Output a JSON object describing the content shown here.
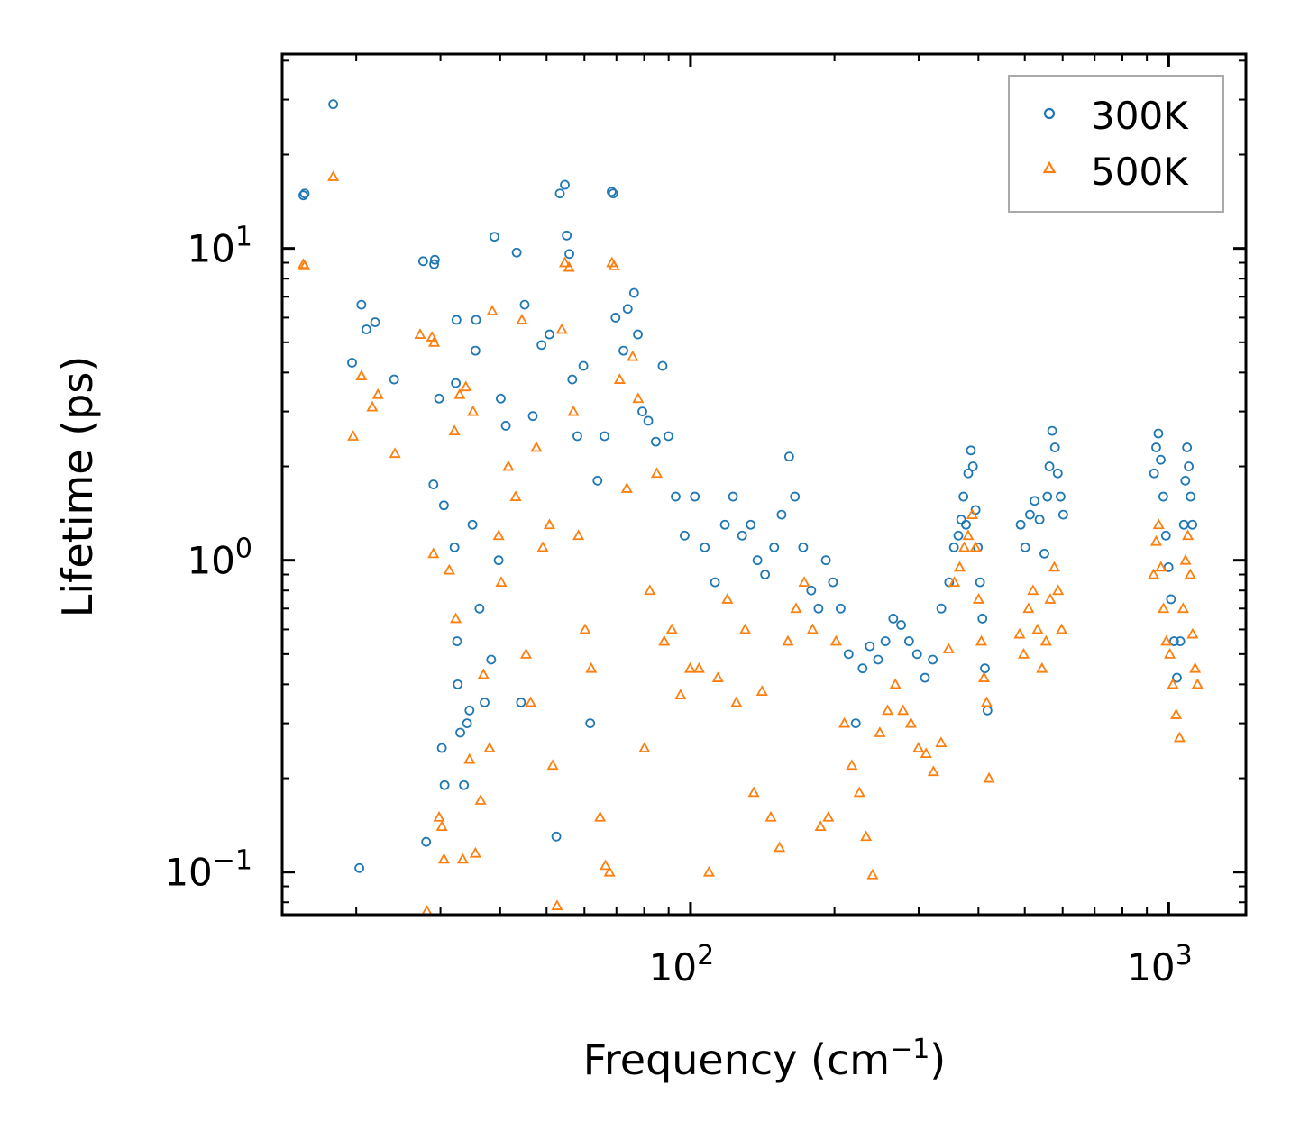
{
  "chart_data": {
    "type": "scatter",
    "xscale": "log",
    "yscale": "log",
    "xlim": [
      14,
      1450
    ],
    "ylim": [
      0.073,
      42
    ],
    "xlabel": "Frequency (cm",
    "xlabel_sup": "−1",
    "xlabel_end": ")",
    "ylabel": "Lifetime (ps)",
    "xticks": [
      {
        "value": 100,
        "base": "10",
        "exp": "2"
      },
      {
        "value": 1000,
        "base": "10",
        "exp": "3"
      }
    ],
    "yticks": [
      {
        "value": 0.1,
        "base": "10",
        "exp": "−1"
      },
      {
        "value": 1,
        "base": "10",
        "exp": "0"
      },
      {
        "value": 10,
        "base": "10",
        "exp": "1"
      }
    ],
    "legend": {
      "position": "top-right"
    },
    "series": [
      {
        "name": "300K",
        "marker": "circle",
        "color": "#1f77b4",
        "points": [
          [
            15.5,
            14.8
          ],
          [
            15.6,
            15.0
          ],
          [
            17.9,
            29.0
          ],
          [
            19.6,
            4.3
          ],
          [
            20.3,
            0.103
          ],
          [
            20.5,
            6.6
          ],
          [
            21.0,
            5.5
          ],
          [
            21.9,
            5.8
          ],
          [
            24.0,
            3.8
          ],
          [
            27.6,
            9.1
          ],
          [
            28.0,
            0.125
          ],
          [
            29.1,
            8.9
          ],
          [
            29.2,
            9.2
          ],
          [
            29.0,
            1.75
          ],
          [
            29.8,
            3.3
          ],
          [
            30.2,
            0.25
          ],
          [
            30.5,
            1.5
          ],
          [
            30.6,
            0.19
          ],
          [
            32.1,
            1.1
          ],
          [
            32.4,
            5.9
          ],
          [
            32.3,
            3.7
          ],
          [
            32.5,
            0.55
          ],
          [
            32.6,
            0.4
          ],
          [
            33.0,
            0.28
          ],
          [
            33.6,
            0.19
          ],
          [
            34.1,
            0.3
          ],
          [
            34.5,
            0.33
          ],
          [
            35.0,
            1.3
          ],
          [
            35.5,
            4.7
          ],
          [
            35.6,
            5.9
          ],
          [
            36.2,
            0.7
          ],
          [
            37.1,
            0.35
          ],
          [
            38.3,
            0.48
          ],
          [
            38.9,
            10.9
          ],
          [
            39.7,
            1.0
          ],
          [
            40.1,
            3.3
          ],
          [
            41.1,
            2.7
          ],
          [
            43.3,
            9.7
          ],
          [
            44.2,
            0.35
          ],
          [
            45.0,
            6.6
          ],
          [
            46.8,
            2.9
          ],
          [
            48.8,
            4.9
          ],
          [
            50.7,
            5.3
          ],
          [
            52.4,
            0.13
          ],
          [
            53.3,
            15.0
          ],
          [
            54.6,
            16.0
          ],
          [
            55.1,
            11.0
          ],
          [
            55.8,
            9.6
          ],
          [
            56.6,
            3.8
          ],
          [
            58.0,
            2.5
          ],
          [
            59.7,
            4.2
          ],
          [
            61.7,
            0.3
          ],
          [
            63.9,
            1.8
          ],
          [
            66.1,
            2.5
          ],
          [
            68.4,
            15.2
          ],
          [
            68.9,
            15.0
          ],
          [
            69.7,
            6.0
          ],
          [
            72.4,
            4.7
          ],
          [
            73.9,
            6.4
          ],
          [
            76.2,
            7.2
          ],
          [
            77.6,
            5.3
          ],
          [
            79.3,
            3.0
          ],
          [
            81.6,
            2.8
          ],
          [
            84.6,
            2.4
          ],
          [
            87.4,
            4.2
          ],
          [
            89.9,
            2.5
          ],
          [
            93.1,
            1.6
          ],
          [
            97.2,
            1.2
          ],
          [
            102.1,
            1.6
          ],
          [
            107.1,
            1.1
          ],
          [
            112.5,
            0.85
          ],
          [
            118.0,
            1.3
          ],
          [
            122.7,
            1.6
          ],
          [
            128.2,
            1.2
          ],
          [
            133.6,
            1.3
          ],
          [
            138.0,
            1.0
          ],
          [
            143.2,
            0.9
          ],
          [
            149.6,
            1.1
          ],
          [
            155.0,
            1.4
          ],
          [
            160.8,
            2.15
          ],
          [
            165.3,
            1.6
          ],
          [
            172.0,
            1.1
          ],
          [
            178.8,
            0.8
          ],
          [
            185.2,
            0.7
          ],
          [
            191.9,
            1.0
          ],
          [
            198.5,
            0.85
          ],
          [
            206.0,
            0.7
          ],
          [
            214.1,
            0.5
          ],
          [
            221.6,
            0.3
          ],
          [
            229.0,
            0.45
          ],
          [
            237.1,
            0.53
          ],
          [
            246.7,
            0.48
          ],
          [
            255.6,
            0.55
          ],
          [
            265.4,
            0.65
          ],
          [
            275.7,
            0.62
          ],
          [
            286.4,
            0.55
          ],
          [
            297.7,
            0.5
          ],
          [
            309.2,
            0.42
          ],
          [
            321.0,
            0.48
          ],
          [
            334.5,
            0.7
          ],
          [
            347.4,
            0.85
          ],
          [
            355.5,
            1.1
          ],
          [
            363.1,
            1.2
          ],
          [
            368.0,
            1.35
          ],
          [
            372.1,
            1.6
          ],
          [
            376.7,
            1.3
          ],
          [
            380.8,
            1.9
          ],
          [
            385.7,
            2.25
          ],
          [
            389.5,
            2.0
          ],
          [
            394.5,
            1.45
          ],
          [
            398.8,
            1.1
          ],
          [
            403.2,
            0.85
          ],
          [
            407.7,
            0.65
          ],
          [
            412.7,
            0.45
          ],
          [
            417.7,
            0.33
          ],
          [
            490.1,
            1.3
          ],
          [
            501.0,
            1.1
          ],
          [
            512.6,
            1.4
          ],
          [
            524.1,
            1.55
          ],
          [
            536.9,
            1.35
          ],
          [
            549.5,
            1.05
          ],
          [
            557.4,
            1.6
          ],
          [
            563.0,
            2.0
          ],
          [
            570.5,
            2.6
          ],
          [
            578.2,
            2.3
          ],
          [
            586.0,
            1.9
          ],
          [
            594.1,
            1.6
          ],
          [
            601.7,
            1.4
          ],
          [
            932.0,
            1.9
          ],
          [
            941.3,
            2.3
          ],
          [
            951.4,
            2.55
          ],
          [
            962.3,
            2.1
          ],
          [
            974.2,
            1.6
          ],
          [
            986.5,
            1.2
          ],
          [
            999.0,
            0.95
          ],
          [
            1010.9,
            0.75
          ],
          [
            1026.0,
            0.55
          ],
          [
            1040.2,
            0.42
          ],
          [
            1056.9,
            0.55
          ],
          [
            1075.5,
            1.3
          ],
          [
            1083.2,
            1.8
          ],
          [
            1091.9,
            2.3
          ],
          [
            1101.0,
            2.0
          ],
          [
            1110.9,
            1.6
          ],
          [
            1120.5,
            1.3
          ]
        ]
      },
      {
        "name": "500K",
        "marker": "triangle",
        "color": "#ff7f0e",
        "points": [
          [
            15.5,
            8.9
          ],
          [
            15.6,
            8.8
          ],
          [
            17.9,
            17.0
          ],
          [
            19.7,
            2.5
          ],
          [
            20.5,
            3.9
          ],
          [
            21.6,
            3.1
          ],
          [
            22.2,
            3.4
          ],
          [
            24.1,
            2.2
          ],
          [
            27.2,
            5.3
          ],
          [
            28.1,
            0.075
          ],
          [
            28.8,
            5.2
          ],
          [
            29.0,
            1.05
          ],
          [
            29.1,
            5.0
          ],
          [
            29.8,
            0.15
          ],
          [
            30.2,
            0.14
          ],
          [
            30.5,
            0.11
          ],
          [
            31.3,
            0.93
          ],
          [
            32.1,
            2.6
          ],
          [
            32.3,
            0.65
          ],
          [
            32.9,
            3.4
          ],
          [
            33.4,
            0.11
          ],
          [
            33.9,
            3.6
          ],
          [
            34.5,
            0.23
          ],
          [
            35.1,
            3.0
          ],
          [
            35.5,
            0.115
          ],
          [
            36.4,
            0.17
          ],
          [
            36.9,
            0.43
          ],
          [
            38.0,
            0.25
          ],
          [
            38.5,
            6.3
          ],
          [
            39.7,
            1.2
          ],
          [
            40.2,
            0.85
          ],
          [
            41.6,
            2.0
          ],
          [
            43.1,
            1.6
          ],
          [
            44.4,
            5.9
          ],
          [
            45.3,
            0.5
          ],
          [
            46.3,
            0.35
          ],
          [
            47.6,
            2.3
          ],
          [
            49.1,
            1.1
          ],
          [
            50.7,
            1.3
          ],
          [
            51.5,
            0.22
          ],
          [
            52.6,
            0.078
          ],
          [
            53.8,
            5.5
          ],
          [
            54.6,
            9.0
          ],
          [
            55.7,
            8.7
          ],
          [
            56.9,
            3.0
          ],
          [
            58.3,
            1.2
          ],
          [
            60.2,
            0.6
          ],
          [
            62.0,
            0.45
          ],
          [
            64.7,
            0.15
          ],
          [
            66.4,
            0.105
          ],
          [
            67.7,
            0.1
          ],
          [
            68.5,
            9.0
          ],
          [
            69.2,
            8.8
          ],
          [
            71.1,
            3.8
          ],
          [
            73.6,
            1.7
          ],
          [
            75.7,
            4.5
          ],
          [
            77.7,
            3.3
          ],
          [
            80.1,
            0.25
          ],
          [
            82.2,
            0.8
          ],
          [
            85.0,
            1.9
          ],
          [
            88.1,
            0.55
          ],
          [
            91.4,
            0.6
          ],
          [
            95.3,
            0.37
          ],
          [
            99.8,
            0.45
          ],
          [
            104.2,
            0.45
          ],
          [
            109.3,
            0.1
          ],
          [
            114.1,
            0.42
          ],
          [
            119.4,
            0.75
          ],
          [
            124.7,
            0.35
          ],
          [
            130.1,
            0.6
          ],
          [
            135.6,
            0.18
          ],
          [
            141.1,
            0.38
          ],
          [
            147.2,
            0.15
          ],
          [
            153.5,
            0.12
          ],
          [
            159.8,
            0.55
          ],
          [
            166.2,
            0.7
          ],
          [
            172.9,
            0.85
          ],
          [
            180.0,
            0.6
          ],
          [
            187.0,
            0.14
          ],
          [
            194.2,
            0.15
          ],
          [
            201.5,
            0.55
          ],
          [
            209.7,
            0.3
          ],
          [
            217.4,
            0.22
          ],
          [
            225.5,
            0.18
          ],
          [
            232.8,
            0.13
          ],
          [
            240.3,
            0.098
          ],
          [
            248.8,
            0.28
          ],
          [
            258.3,
            0.33
          ],
          [
            268.1,
            0.4
          ],
          [
            278.2,
            0.33
          ],
          [
            289.0,
            0.3
          ],
          [
            299.5,
            0.25
          ],
          [
            310.8,
            0.24
          ],
          [
            322.1,
            0.21
          ],
          [
            334.2,
            0.26
          ],
          [
            346.5,
            0.52
          ],
          [
            356.1,
            0.85
          ],
          [
            365.4,
            0.95
          ],
          [
            373.6,
            1.1
          ],
          [
            380.7,
            1.2
          ],
          [
            388.2,
            1.4
          ],
          [
            394.5,
            1.1
          ],
          [
            400.3,
            0.75
          ],
          [
            405.6,
            0.55
          ],
          [
            410.9,
            0.42
          ],
          [
            416.1,
            0.35
          ],
          [
            421.0,
            0.2
          ],
          [
            487.7,
            0.58
          ],
          [
            497.3,
            0.5
          ],
          [
            509.1,
            0.7
          ],
          [
            520.2,
            0.8
          ],
          [
            531.8,
            0.6
          ],
          [
            543.2,
            0.45
          ],
          [
            553.9,
            0.55
          ],
          [
            565.2,
            0.75
          ],
          [
            576.4,
            0.95
          ],
          [
            587.0,
            0.8
          ],
          [
            597.1,
            0.6
          ],
          [
            929.7,
            0.9
          ],
          [
            941.3,
            1.15
          ],
          [
            952.9,
            1.3
          ],
          [
            963.2,
            0.95
          ],
          [
            975.1,
            0.7
          ],
          [
            988.3,
            0.55
          ],
          [
            1005.1,
            0.5
          ],
          [
            1020.1,
            0.4
          ],
          [
            1036.3,
            0.32
          ],
          [
            1053.7,
            0.27
          ],
          [
            1071.6,
            0.7
          ],
          [
            1084.0,
            1.0
          ],
          [
            1096.5,
            1.2
          ],
          [
            1109.2,
            0.9
          ],
          [
            1122.0,
            0.58
          ],
          [
            1135.4,
            0.45
          ],
          [
            1148.5,
            0.4
          ]
        ]
      }
    ]
  }
}
